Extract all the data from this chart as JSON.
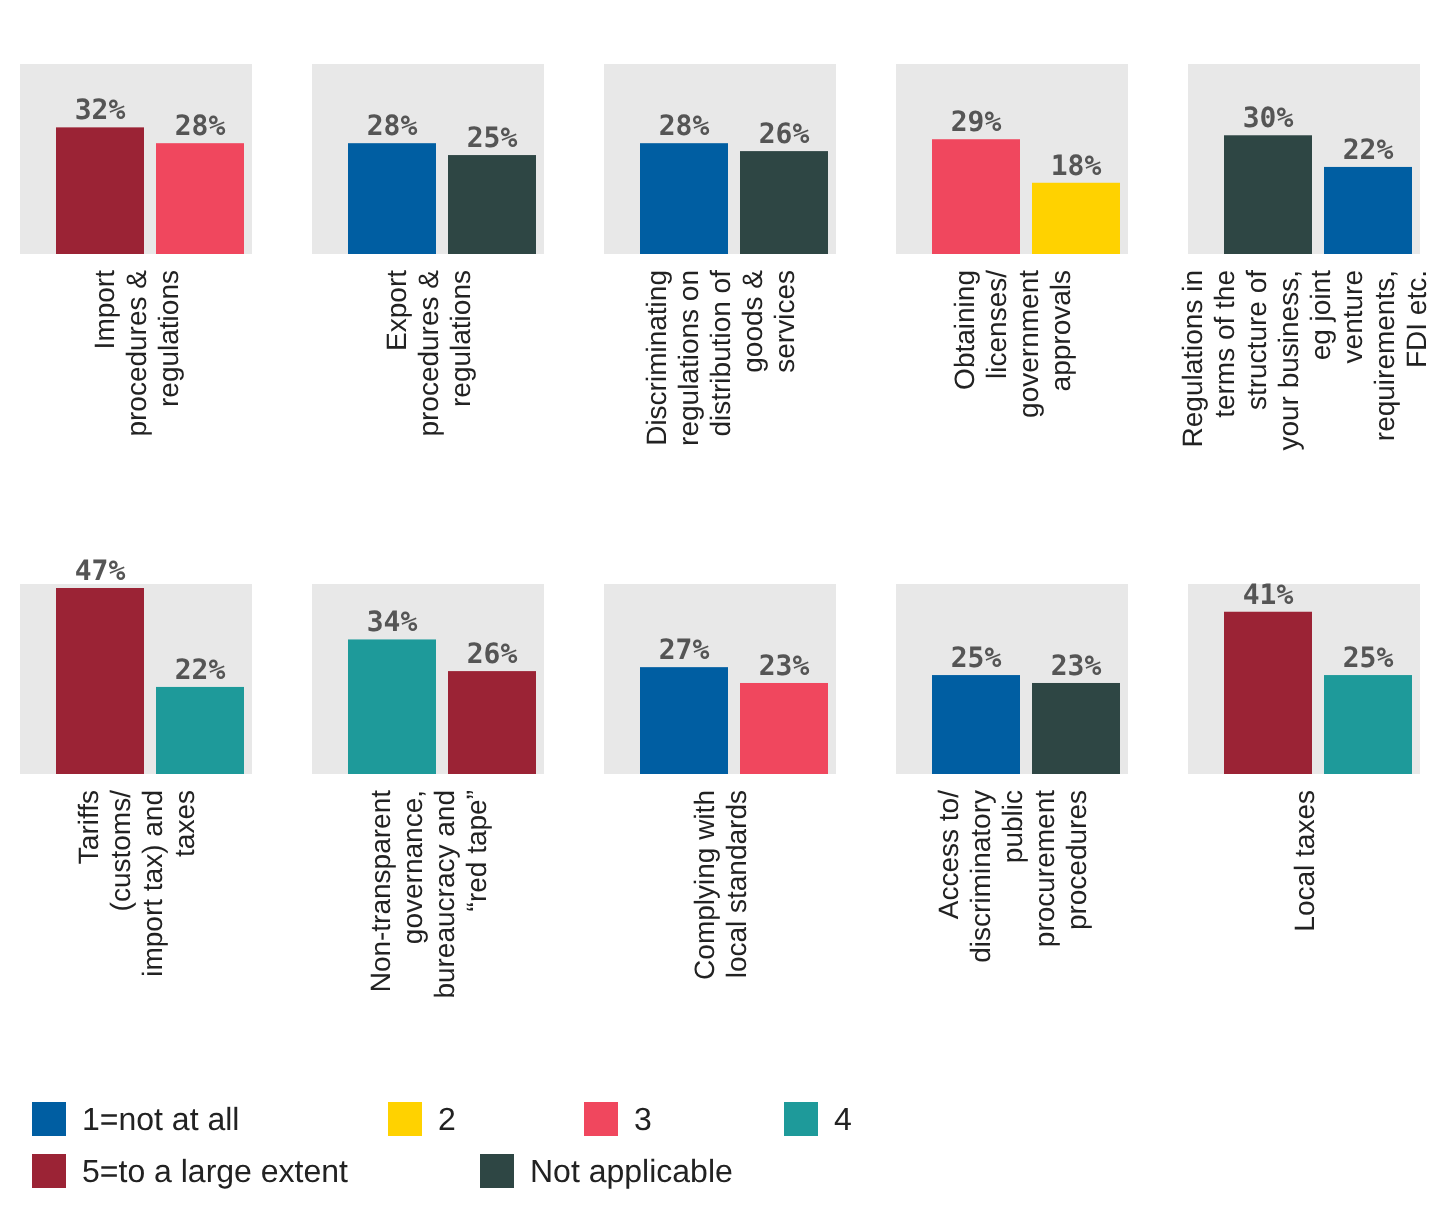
{
  "chart_data": [
    {
      "type": "bar",
      "title": "Import procedures & regulations",
      "categories": [
        null,
        null
      ],
      "values": [
        32,
        28
      ],
      "value_labels": [
        "32%",
        "28%"
      ],
      "colors": [
        "#9b2335",
        "#f0475e"
      ]
    },
    {
      "type": "bar",
      "title": "Export procedures & regulations",
      "categories": [
        null,
        null
      ],
      "values": [
        28,
        25
      ],
      "value_labels": [
        "28%",
        "25%"
      ],
      "colors": [
        "#005ea2",
        "#2e4644"
      ]
    },
    {
      "type": "bar",
      "title": "Discriminating regulations on distribution of goods & services",
      "categories": [
        null,
        null
      ],
      "values": [
        28,
        26
      ],
      "value_labels": [
        "28%",
        "26%"
      ],
      "colors": [
        "#005ea2",
        "#2e4644"
      ]
    },
    {
      "type": "bar",
      "title": "Obtaining licenses/ government approvals",
      "categories": [
        null,
        null
      ],
      "values": [
        29,
        18
      ],
      "value_labels": [
        "29%",
        "18%"
      ],
      "colors": [
        "#f0475e",
        "#ffd200"
      ]
    },
    {
      "type": "bar",
      "title": "Regulations in terms of the structure of your business, eg joint venture requirements, FDI etc.",
      "categories": [
        null,
        null
      ],
      "values": [
        30,
        22
      ],
      "value_labels": [
        "30%",
        "22%"
      ],
      "colors": [
        "#2e4644",
        "#005ea2"
      ]
    },
    {
      "type": "bar",
      "title": "Tariffs (customs/ import tax) and taxes",
      "categories": [
        null,
        null
      ],
      "values": [
        47,
        22
      ],
      "value_labels": [
        "47%",
        "22%"
      ],
      "colors": [
        "#9b2335",
        "#1e9a9a"
      ]
    },
    {
      "type": "bar",
      "title": "Non-transparent governance, bureaucracy and “red tape”",
      "categories": [
        null,
        null
      ],
      "values": [
        34,
        26
      ],
      "value_labels": [
        "34%",
        "26%"
      ],
      "colors": [
        "#1e9a9a",
        "#9b2335"
      ]
    },
    {
      "type": "bar",
      "title": "Complying with local standards",
      "categories": [
        null,
        null
      ],
      "values": [
        27,
        23
      ],
      "value_labels": [
        "27%",
        "23%"
      ],
      "colors": [
        "#005ea2",
        "#f0475e"
      ]
    },
    {
      "type": "bar",
      "title": "Access to/ discriminatory public procurement procedures",
      "categories": [
        null,
        null
      ],
      "values": [
        25,
        23
      ],
      "value_labels": [
        "25%",
        "23%"
      ],
      "colors": [
        "#005ea2",
        "#2e4644"
      ]
    },
    {
      "type": "bar",
      "title": "Local taxes",
      "categories": [
        null,
        null
      ],
      "values": [
        41,
        25
      ],
      "value_labels": [
        "41%",
        "25%"
      ],
      "colors": [
        "#9b2335",
        "#1e9a9a"
      ]
    },
    {
      "type": "other",
      "legend": "bottom",
      "series": [
        {
          "name": "1=not at all",
          "color": "#005ea2"
        },
        {
          "name": "2",
          "color": "#ffd200"
        },
        {
          "name": "3",
          "color": "#f0475e"
        },
        {
          "name": "4",
          "color": "#1e9a9a"
        },
        {
          "name": "5=to a large extent",
          "color": "#9b2335"
        },
        {
          "name": "Not applicable",
          "color": "#2e4644"
        }
      ]
    }
  ]
}
